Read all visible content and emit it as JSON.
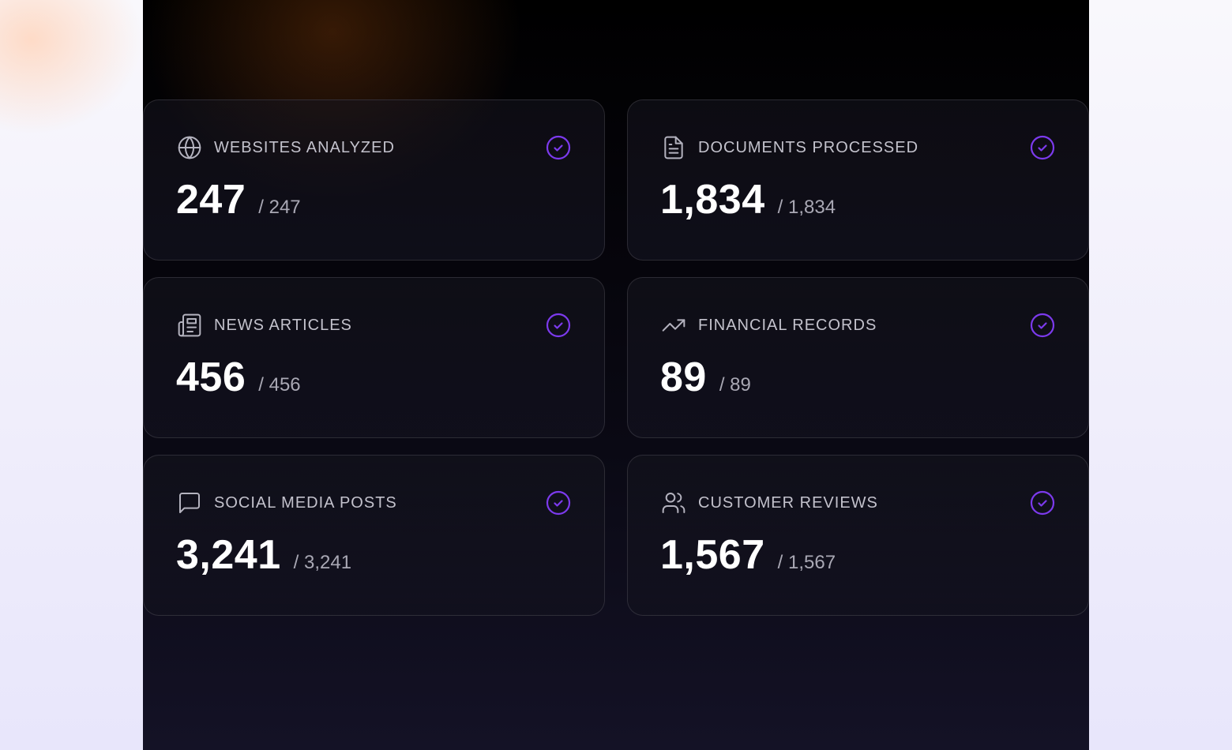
{
  "accent": "#7c3aed",
  "cards": [
    {
      "label": "WEBSITES ANALYZED",
      "value": "247",
      "total": "/ 247",
      "icon": "globe-icon",
      "status": "check-circle-icon"
    },
    {
      "label": "DOCUMENTS PROCESSED",
      "value": "1,834",
      "total": "/ 1,834",
      "icon": "document-icon",
      "status": "check-circle-icon"
    },
    {
      "label": "NEWS ARTICLES",
      "value": "456",
      "total": "/ 456",
      "icon": "newspaper-icon",
      "status": "check-circle-icon"
    },
    {
      "label": "FINANCIAL RECORDS",
      "value": "89",
      "total": "/ 89",
      "icon": "trending-up-icon",
      "status": "check-circle-icon"
    },
    {
      "label": "SOCIAL MEDIA POSTS",
      "value": "3,241",
      "total": "/ 3,241",
      "icon": "chat-bubble-icon",
      "status": "check-circle-icon"
    },
    {
      "label": "CUSTOMER REVIEWS",
      "value": "1,567",
      "total": "/ 1,567",
      "icon": "users-icon",
      "status": "check-circle-icon"
    }
  ]
}
